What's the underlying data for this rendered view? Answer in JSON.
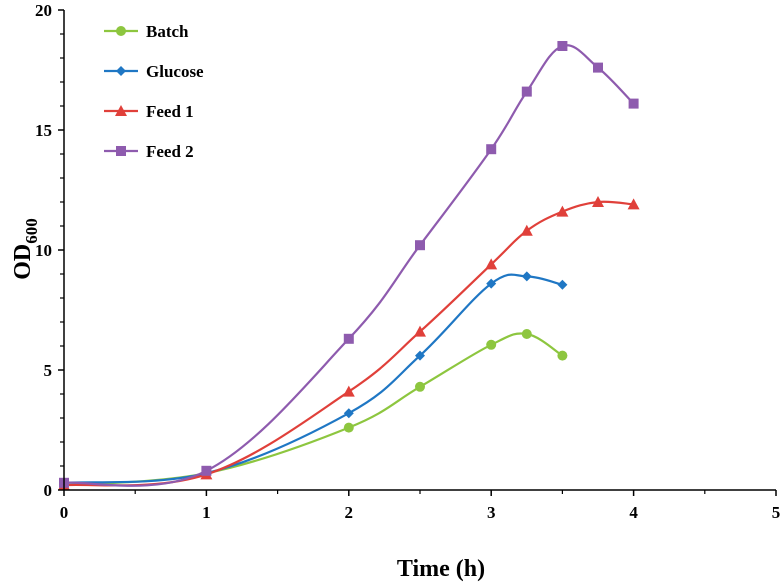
{
  "chart_data": {
    "type": "line",
    "title": "",
    "xlabel": "Time (h)",
    "ylabel_main": "OD",
    "ylabel_sub": "600",
    "xlim": [
      0,
      5
    ],
    "ylim": [
      0,
      20
    ],
    "xticks": [
      0,
      1,
      2,
      3,
      4,
      5
    ],
    "yticks": [
      0,
      5,
      10,
      15,
      20
    ],
    "legend_position": "top-left",
    "grid": false,
    "series": [
      {
        "name": "Batch",
        "color": "#8DC63F",
        "marker": "circle",
        "x": [
          0,
          1,
          2,
          2.5,
          3,
          3.25,
          3.5
        ],
        "y": [
          0.2,
          0.7,
          2.6,
          4.3,
          6.05,
          6.5,
          5.6
        ]
      },
      {
        "name": "Glucose",
        "color": "#1F77C4",
        "marker": "diamond",
        "x": [
          0,
          1,
          2,
          2.5,
          3,
          3.25,
          3.5
        ],
        "y": [
          0.3,
          0.7,
          3.2,
          5.6,
          8.6,
          8.9,
          8.55
        ]
      },
      {
        "name": "Feed 1",
        "color": "#E0403A",
        "marker": "triangle",
        "x": [
          0,
          1,
          2,
          2.5,
          3,
          3.25,
          3.5,
          3.75,
          4
        ],
        "y": [
          0.2,
          0.65,
          4.1,
          6.6,
          9.4,
          10.8,
          11.6,
          12.0,
          11.9
        ]
      },
      {
        "name": "Feed 2",
        "color": "#8E5BAE",
        "marker": "square",
        "x": [
          0,
          1,
          2,
          2.5,
          3,
          3.25,
          3.5,
          3.75,
          4
        ],
        "y": [
          0.3,
          0.8,
          6.3,
          10.2,
          14.2,
          16.6,
          18.5,
          17.6,
          16.1
        ]
      }
    ]
  }
}
